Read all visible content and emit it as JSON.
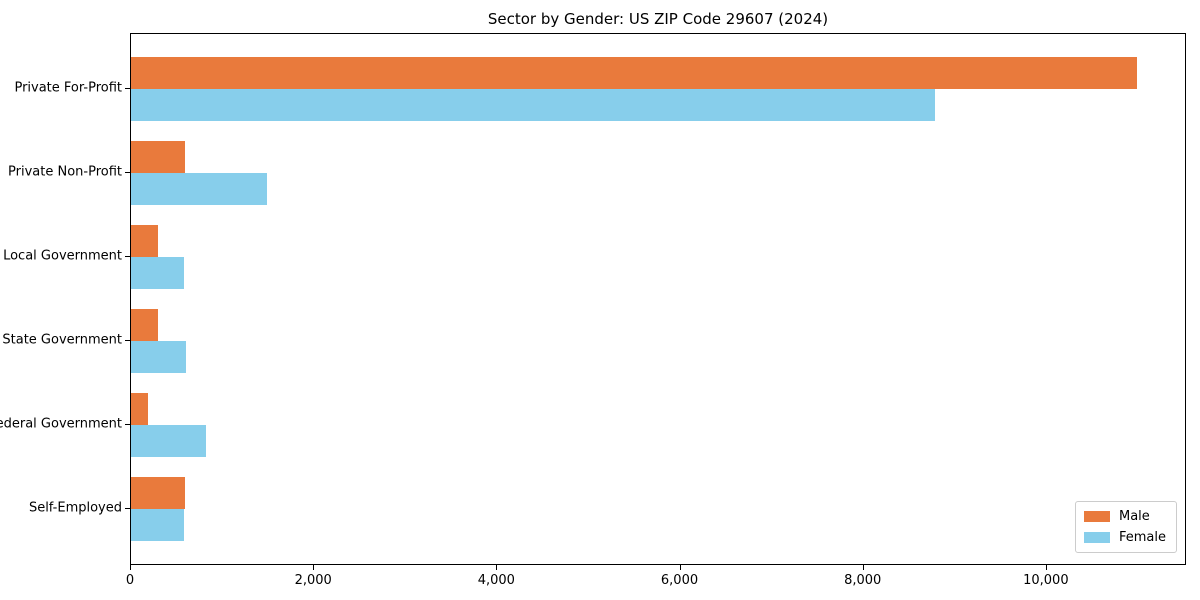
{
  "chart_data": {
    "type": "bar",
    "orientation": "horizontal",
    "title": "Sector by Gender: US ZIP Code 29607 (2024)",
    "categories": [
      "Private For-Profit",
      "Private Non-Profit",
      "Local Government",
      "State Government",
      "Federal Government",
      "Self-Employed"
    ],
    "series": [
      {
        "name": "Male",
        "color": "#e97a3c",
        "values": [
          10980,
          590,
          290,
          295,
          190,
          590
        ]
      },
      {
        "name": "Female",
        "color": "#87ceeb",
        "values": [
          8780,
          1480,
          580,
          600,
          820,
          580
        ]
      }
    ],
    "xlim": [
      0,
      11530
    ],
    "xticks": [
      0,
      2000,
      4000,
      6000,
      8000,
      10000
    ],
    "xtick_labels": [
      "0",
      "2,000",
      "4,000",
      "6,000",
      "8,000",
      "10,000"
    ],
    "legend_position": "lower-right",
    "grid": false,
    "axis_color": "#000000",
    "background_color": "#ffffff"
  }
}
